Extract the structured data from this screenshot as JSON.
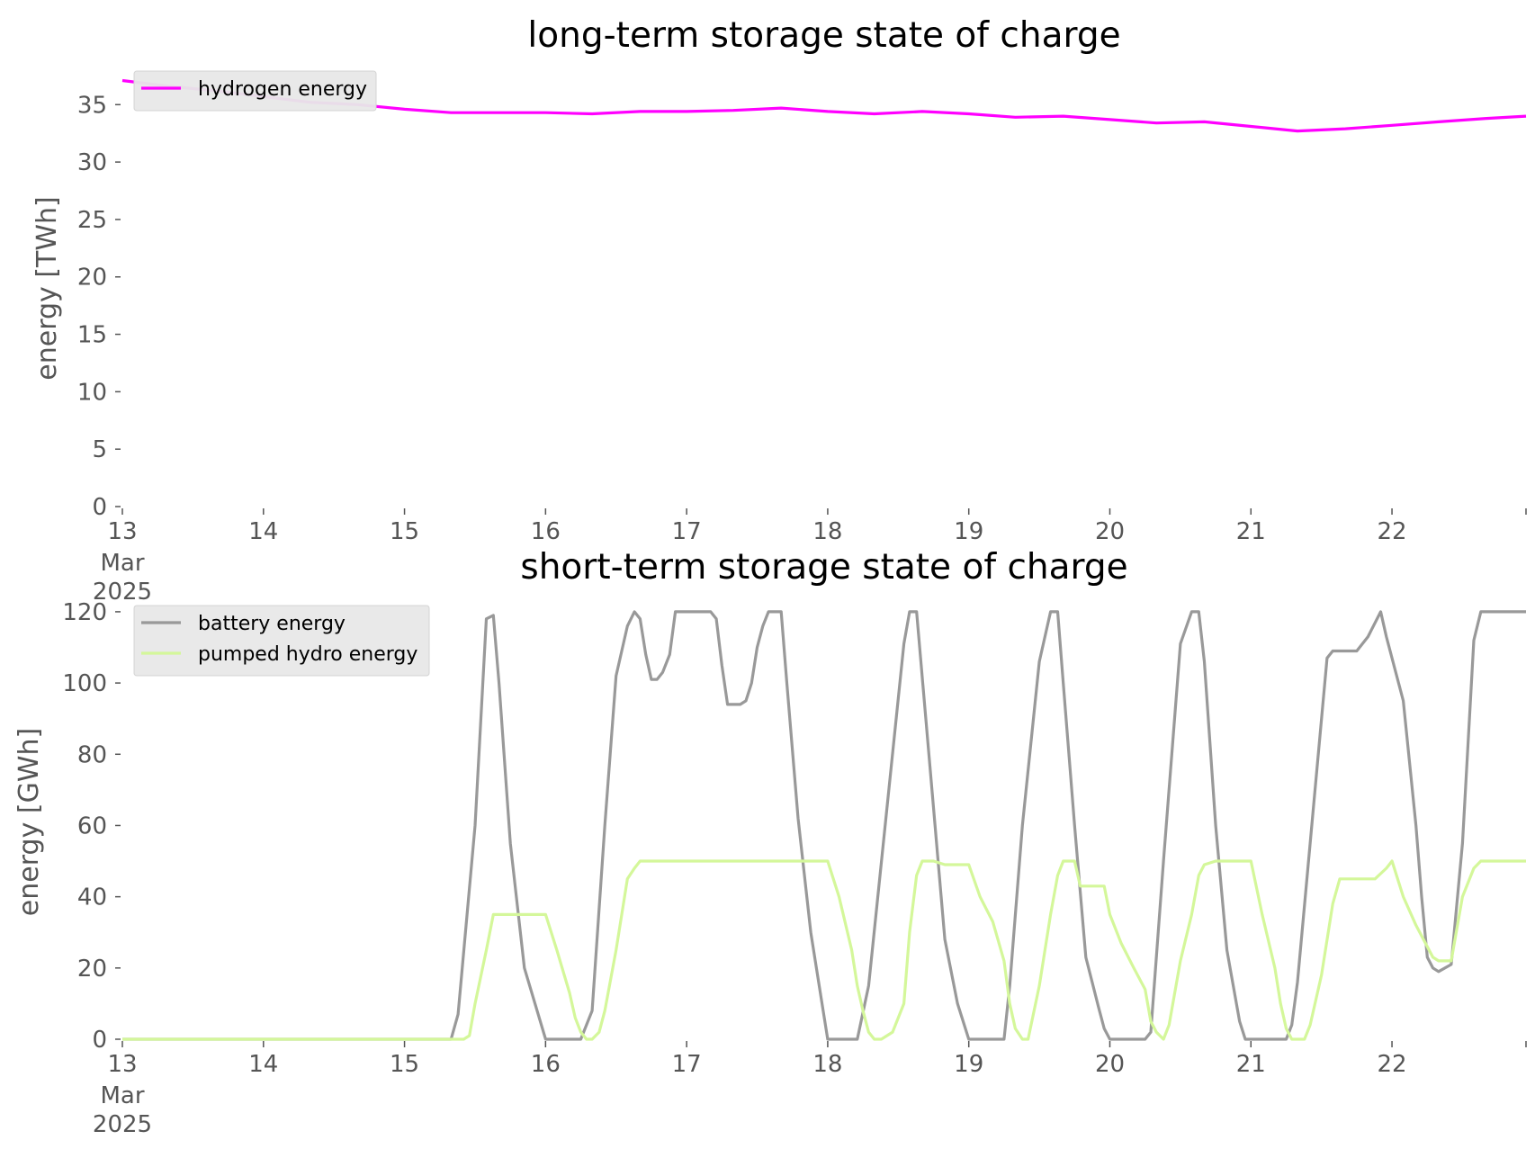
{
  "chart_data": [
    {
      "type": "line",
      "title": "long-term storage state of charge",
      "xlabel": "",
      "ylabel": "energy [TWh]",
      "ylim": [
        0,
        38
      ],
      "yticks": [
        0,
        5,
        10,
        15,
        20,
        25,
        30,
        35
      ],
      "xlim": [
        0,
        9.95
      ],
      "xticks": [
        0,
        1,
        2,
        3,
        4,
        5,
        6,
        7,
        8,
        9,
        10
      ],
      "xtick_labels": [
        "13",
        "14",
        "15",
        "16",
        "17",
        "18",
        "19",
        "20",
        "21",
        "22",
        ""
      ],
      "xtick_sublabels": [
        "Mar",
        "2025"
      ],
      "grid": false,
      "legend": "top-left",
      "series": [
        {
          "name": "hydrogen energy",
          "color": "#ff00ff",
          "x": [
            0,
            0.33,
            0.67,
            1.0,
            1.33,
            1.67,
            2.0,
            2.33,
            2.67,
            3.0,
            3.33,
            3.67,
            4.0,
            4.33,
            4.67,
            5.0,
            5.33,
            5.67,
            6.0,
            6.33,
            6.67,
            7.0,
            7.33,
            7.67,
            8.0,
            8.33,
            8.67,
            9.0,
            9.33,
            9.67,
            9.95
          ],
          "values": [
            37.1,
            36.6,
            36.2,
            35.7,
            35.2,
            35.0,
            34.6,
            34.3,
            34.3,
            34.3,
            34.2,
            34.4,
            34.4,
            34.5,
            34.7,
            34.4,
            34.2,
            34.4,
            34.2,
            33.9,
            34.0,
            33.7,
            33.4,
            33.5,
            33.1,
            32.7,
            32.9,
            33.2,
            33.5,
            33.8,
            34.0
          ]
        }
      ]
    },
    {
      "type": "line",
      "title": "short-term storage state of charge",
      "xlabel": "",
      "ylabel": "energy [GWh]",
      "ylim": [
        0,
        122
      ],
      "yticks": [
        0,
        20,
        40,
        60,
        80,
        100,
        120
      ],
      "xlim": [
        0,
        9.95
      ],
      "xticks": [
        0,
        1,
        2,
        3,
        4,
        5,
        6,
        7,
        8,
        9,
        10
      ],
      "xtick_labels": [
        "13",
        "14",
        "15",
        "16",
        "17",
        "18",
        "19",
        "20",
        "21",
        "22",
        ""
      ],
      "xtick_sublabels": [
        "Mar",
        "2025"
      ],
      "grid": false,
      "legend": "top-left",
      "series": [
        {
          "name": "battery energy",
          "color": "#999999",
          "x": [
            0,
            2.33,
            2.38,
            2.5,
            2.58,
            2.63,
            2.67,
            2.75,
            2.85,
            3.0,
            3.25,
            3.33,
            3.42,
            3.5,
            3.58,
            3.63,
            3.67,
            3.71,
            3.75,
            3.79,
            3.83,
            3.88,
            3.92,
            3.96,
            4.17,
            4.21,
            4.25,
            4.29,
            4.38,
            4.42,
            4.46,
            4.5,
            4.54,
            4.58,
            4.67,
            4.71,
            4.79,
            4.88,
            4.96,
            5.0,
            5.21,
            5.29,
            5.42,
            5.54,
            5.58,
            5.63,
            5.75,
            5.83,
            5.92,
            6.0,
            6.25,
            6.29,
            6.38,
            6.5,
            6.58,
            6.63,
            6.67,
            6.75,
            6.83,
            6.92,
            6.96,
            7.0,
            7.25,
            7.29,
            7.38,
            7.5,
            7.58,
            7.63,
            7.67,
            7.75,
            7.83,
            7.92,
            7.96,
            8.0,
            8.25,
            8.29,
            8.33,
            8.42,
            8.54,
            8.58,
            8.63,
            8.75,
            8.83,
            8.92,
            8.96,
            9.08,
            9.17,
            9.21,
            9.25,
            9.29,
            9.33,
            9.42,
            9.5,
            9.58,
            9.63,
            9.67,
            9.95
          ],
          "values": [
            0,
            0,
            7,
            60,
            118,
            119,
            100,
            55,
            20,
            0,
            0,
            8,
            60,
            102,
            116,
            120,
            118,
            108,
            101,
            101,
            103,
            108,
            120,
            120,
            120,
            118,
            105,
            94,
            94,
            95,
            100,
            110,
            116,
            120,
            120,
            100,
            62,
            30,
            10,
            0,
            0,
            15,
            65,
            111,
            120,
            120,
            65,
            28,
            10,
            0,
            0,
            15,
            60,
            106,
            120,
            120,
            100,
            60,
            23,
            9,
            3,
            0,
            0,
            2,
            50,
            111,
            120,
            120,
            106,
            60,
            25,
            5,
            0,
            0,
            0,
            4,
            16,
            55,
            107,
            109,
            109,
            109,
            113,
            120,
            113,
            95,
            60,
            40,
            23,
            20,
            19,
            21,
            55,
            112,
            120,
            120,
            120
          ]
        },
        {
          "name": "pumped hydro energy",
          "color": "#d4f79a",
          "x": [
            0,
            2.42,
            2.46,
            2.5,
            2.58,
            2.63,
            2.67,
            2.75,
            2.83,
            2.92,
            3.0,
            3.08,
            3.17,
            3.21,
            3.25,
            3.29,
            3.33,
            3.38,
            3.42,
            3.5,
            3.58,
            3.63,
            3.67,
            3.75,
            4.0,
            4.5,
            4.88,
            4.96,
            5.0,
            5.08,
            5.17,
            5.21,
            5.25,
            5.29,
            5.33,
            5.38,
            5.46,
            5.54,
            5.58,
            5.63,
            5.67,
            5.75,
            5.83,
            5.92,
            6.0,
            6.08,
            6.17,
            6.25,
            6.29,
            6.33,
            6.38,
            6.42,
            6.5,
            6.58,
            6.63,
            6.67,
            6.75,
            6.79,
            6.83,
            6.96,
            7.0,
            7.08,
            7.17,
            7.25,
            7.29,
            7.33,
            7.38,
            7.42,
            7.5,
            7.58,
            7.63,
            7.67,
            7.75,
            7.79,
            7.83,
            7.92,
            8.0,
            8.08,
            8.17,
            8.21,
            8.25,
            8.29,
            8.33,
            8.38,
            8.42,
            8.5,
            8.58,
            8.63,
            8.75,
            8.88,
            8.96,
            9.0,
            9.08,
            9.17,
            9.21,
            9.25,
            9.29,
            9.33,
            9.42,
            9.5,
            9.58,
            9.63,
            9.95
          ],
          "values": [
            0,
            0,
            1,
            10,
            25,
            35,
            35,
            35,
            35,
            35,
            35,
            25,
            13,
            6,
            2,
            0,
            0,
            2,
            8,
            25,
            45,
            48,
            50,
            50,
            50,
            50,
            50,
            50,
            50,
            40,
            25,
            15,
            8,
            2,
            0,
            0,
            2,
            10,
            30,
            46,
            50,
            50,
            49,
            49,
            49,
            40,
            33,
            22,
            10,
            3,
            0,
            0,
            15,
            35,
            46,
            50,
            50,
            43,
            43,
            43,
            35,
            27,
            20,
            14,
            5,
            2,
            0,
            4,
            22,
            35,
            46,
            49,
            50,
            50,
            50,
            50,
            50,
            35,
            20,
            10,
            3,
            0,
            0,
            0,
            4,
            18,
            38,
            45,
            45,
            45,
            48,
            50,
            40,
            32,
            29,
            26,
            23,
            22,
            22,
            40,
            48,
            50,
            50
          ]
        }
      ]
    }
  ]
}
